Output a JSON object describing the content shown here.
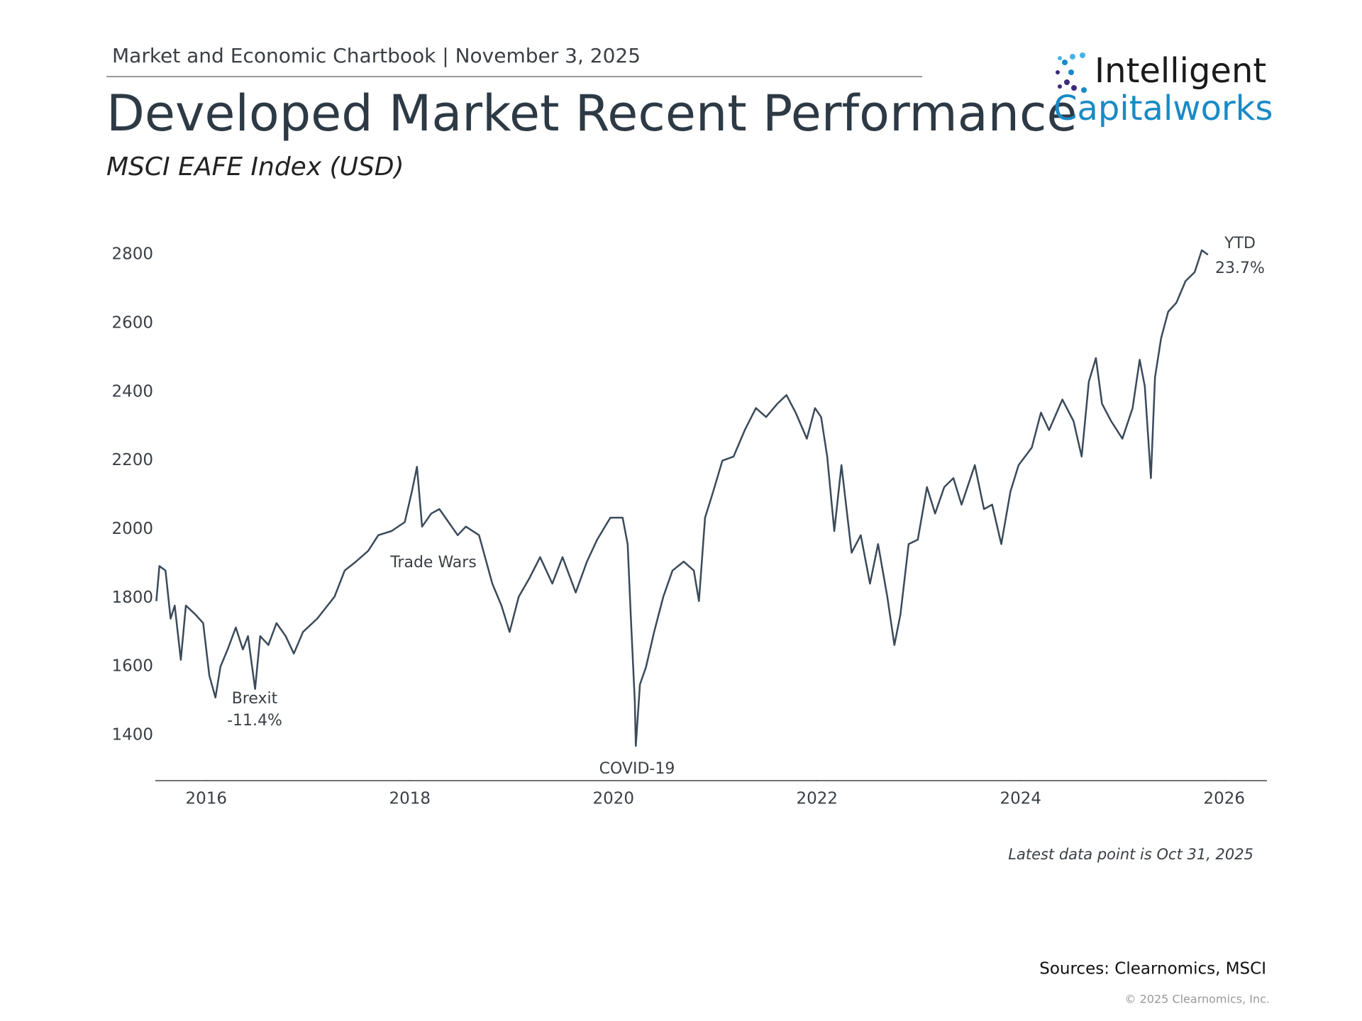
{
  "header": {
    "chartbook": "Market and Economic Chartbook | November 3, 2025"
  },
  "logo": {
    "line1": "Intelligent",
    "line2": "Capitalworks"
  },
  "chart_data": {
    "type": "line",
    "title": "Developed Market Recent Performance",
    "subtitle": "MSCI EAFE Index (USD)",
    "annotations": [
      "YTD",
      "23.7%",
      "Brexit",
      "-11.4%",
      "Trade Wars",
      "COVID-19"
    ],
    "note": "Latest data point is Oct 31, 2025",
    "color": "#3a4a5a",
    "xlim": [
      2015.5,
      2026.42
    ],
    "xticks": [
      2016,
      2018,
      2020,
      2022,
      2024,
      2026
    ],
    "ylim": [
      1268,
      2850
    ],
    "yticks": [
      1400,
      1600,
      1800,
      2000,
      2200,
      2400,
      2600,
      2800
    ],
    "grid": false,
    "x": [
      2015.51,
      2015.54,
      2015.6,
      2015.65,
      2015.69,
      2015.75,
      2015.8,
      2015.89,
      2015.97,
      2016.03,
      2016.09,
      2016.14,
      2016.21,
      2016.29,
      2016.36,
      2016.41,
      2016.48,
      2016.53,
      2016.61,
      2016.69,
      2016.78,
      2016.86,
      2016.95,
      2017.09,
      2017.26,
      2017.36,
      2017.47,
      2017.59,
      2017.69,
      2017.82,
      2017.95,
      2018.02,
      2018.07,
      2018.12,
      2018.21,
      2018.29,
      2018.38,
      2018.47,
      2018.55,
      2018.68,
      2018.81,
      2018.9,
      2018.98,
      2019.07,
      2019.17,
      2019.28,
      2019.4,
      2019.5,
      2019.63,
      2019.74,
      2019.84,
      2019.97,
      2020.09,
      2020.14,
      2020.17,
      2020.21,
      2020.22,
      2020.26,
      2020.32,
      2020.4,
      2020.49,
      2020.58,
      2020.69,
      2020.79,
      2020.84,
      2020.9,
      2020.98,
      2021.07,
      2021.18,
      2021.29,
      2021.4,
      2021.5,
      2021.61,
      2021.7,
      2021.79,
      2021.9,
      2021.98,
      2022.04,
      2022.1,
      2022.17,
      2022.24,
      2022.34,
      2022.43,
      2022.52,
      2022.6,
      2022.69,
      2022.76,
      2022.82,
      2022.9,
      2022.99,
      2023.08,
      2023.16,
      2023.25,
      2023.34,
      2023.42,
      2023.55,
      2023.64,
      2023.72,
      2023.81,
      2023.9,
      2023.98,
      2024.11,
      2024.2,
      2024.28,
      2024.41,
      2024.52,
      2024.6,
      2024.67,
      2024.74,
      2024.8,
      2024.89,
      2025.0,
      2025.1,
      2025.17,
      2025.22,
      2025.28,
      2025.32,
      2025.38,
      2025.45,
      2025.53,
      2025.62,
      2025.71,
      2025.78,
      2025.84
    ],
    "series": [
      {
        "name": "MSCI EAFE Index",
        "color": "#3a4a5a",
        "values": [
          1791,
          1893,
          1880,
          1740,
          1778,
          1620,
          1778,
          1753,
          1727,
          1574,
          1510,
          1600,
          1650,
          1714,
          1650,
          1689,
          1535,
          1689,
          1663,
          1727,
          1689,
          1638,
          1701,
          1740,
          1804,
          1880,
          1906,
          1937,
          1983,
          1995,
          2021,
          2110,
          2182,
          2008,
          2046,
          2059,
          2021,
          1983,
          2008,
          1983,
          1842,
          1778,
          1701,
          1804,
          1855,
          1919,
          1842,
          1919,
          1816,
          1906,
          1970,
          2034,
          2034,
          1957,
          1753,
          1497,
          1369,
          1548,
          1599,
          1701,
          1804,
          1880,
          1906,
          1880,
          1791,
          2034,
          2110,
          2200,
          2212,
          2289,
          2353,
          2327,
          2366,
          2391,
          2340,
          2264,
          2353,
          2327,
          2212,
          1995,
          2187,
          1932,
          1983,
          1842,
          1957,
          1804,
          1663,
          1753,
          1957,
          1970,
          2123,
          2046,
          2123,
          2149,
          2072,
          2187,
          2059,
          2072,
          1957,
          2110,
          2187,
          2238,
          2340,
          2289,
          2378,
          2315,
          2212,
          2430,
          2499,
          2366,
          2315,
          2264,
          2353,
          2494,
          2417,
          2149,
          2443,
          2557,
          2634,
          2660,
          2723,
          2749,
          2813,
          2800
        ]
      }
    ]
  },
  "footer": {
    "sources": "Sources: Clearnomics, MSCI",
    "copyright": "© 2025 Clearnomics, Inc."
  }
}
